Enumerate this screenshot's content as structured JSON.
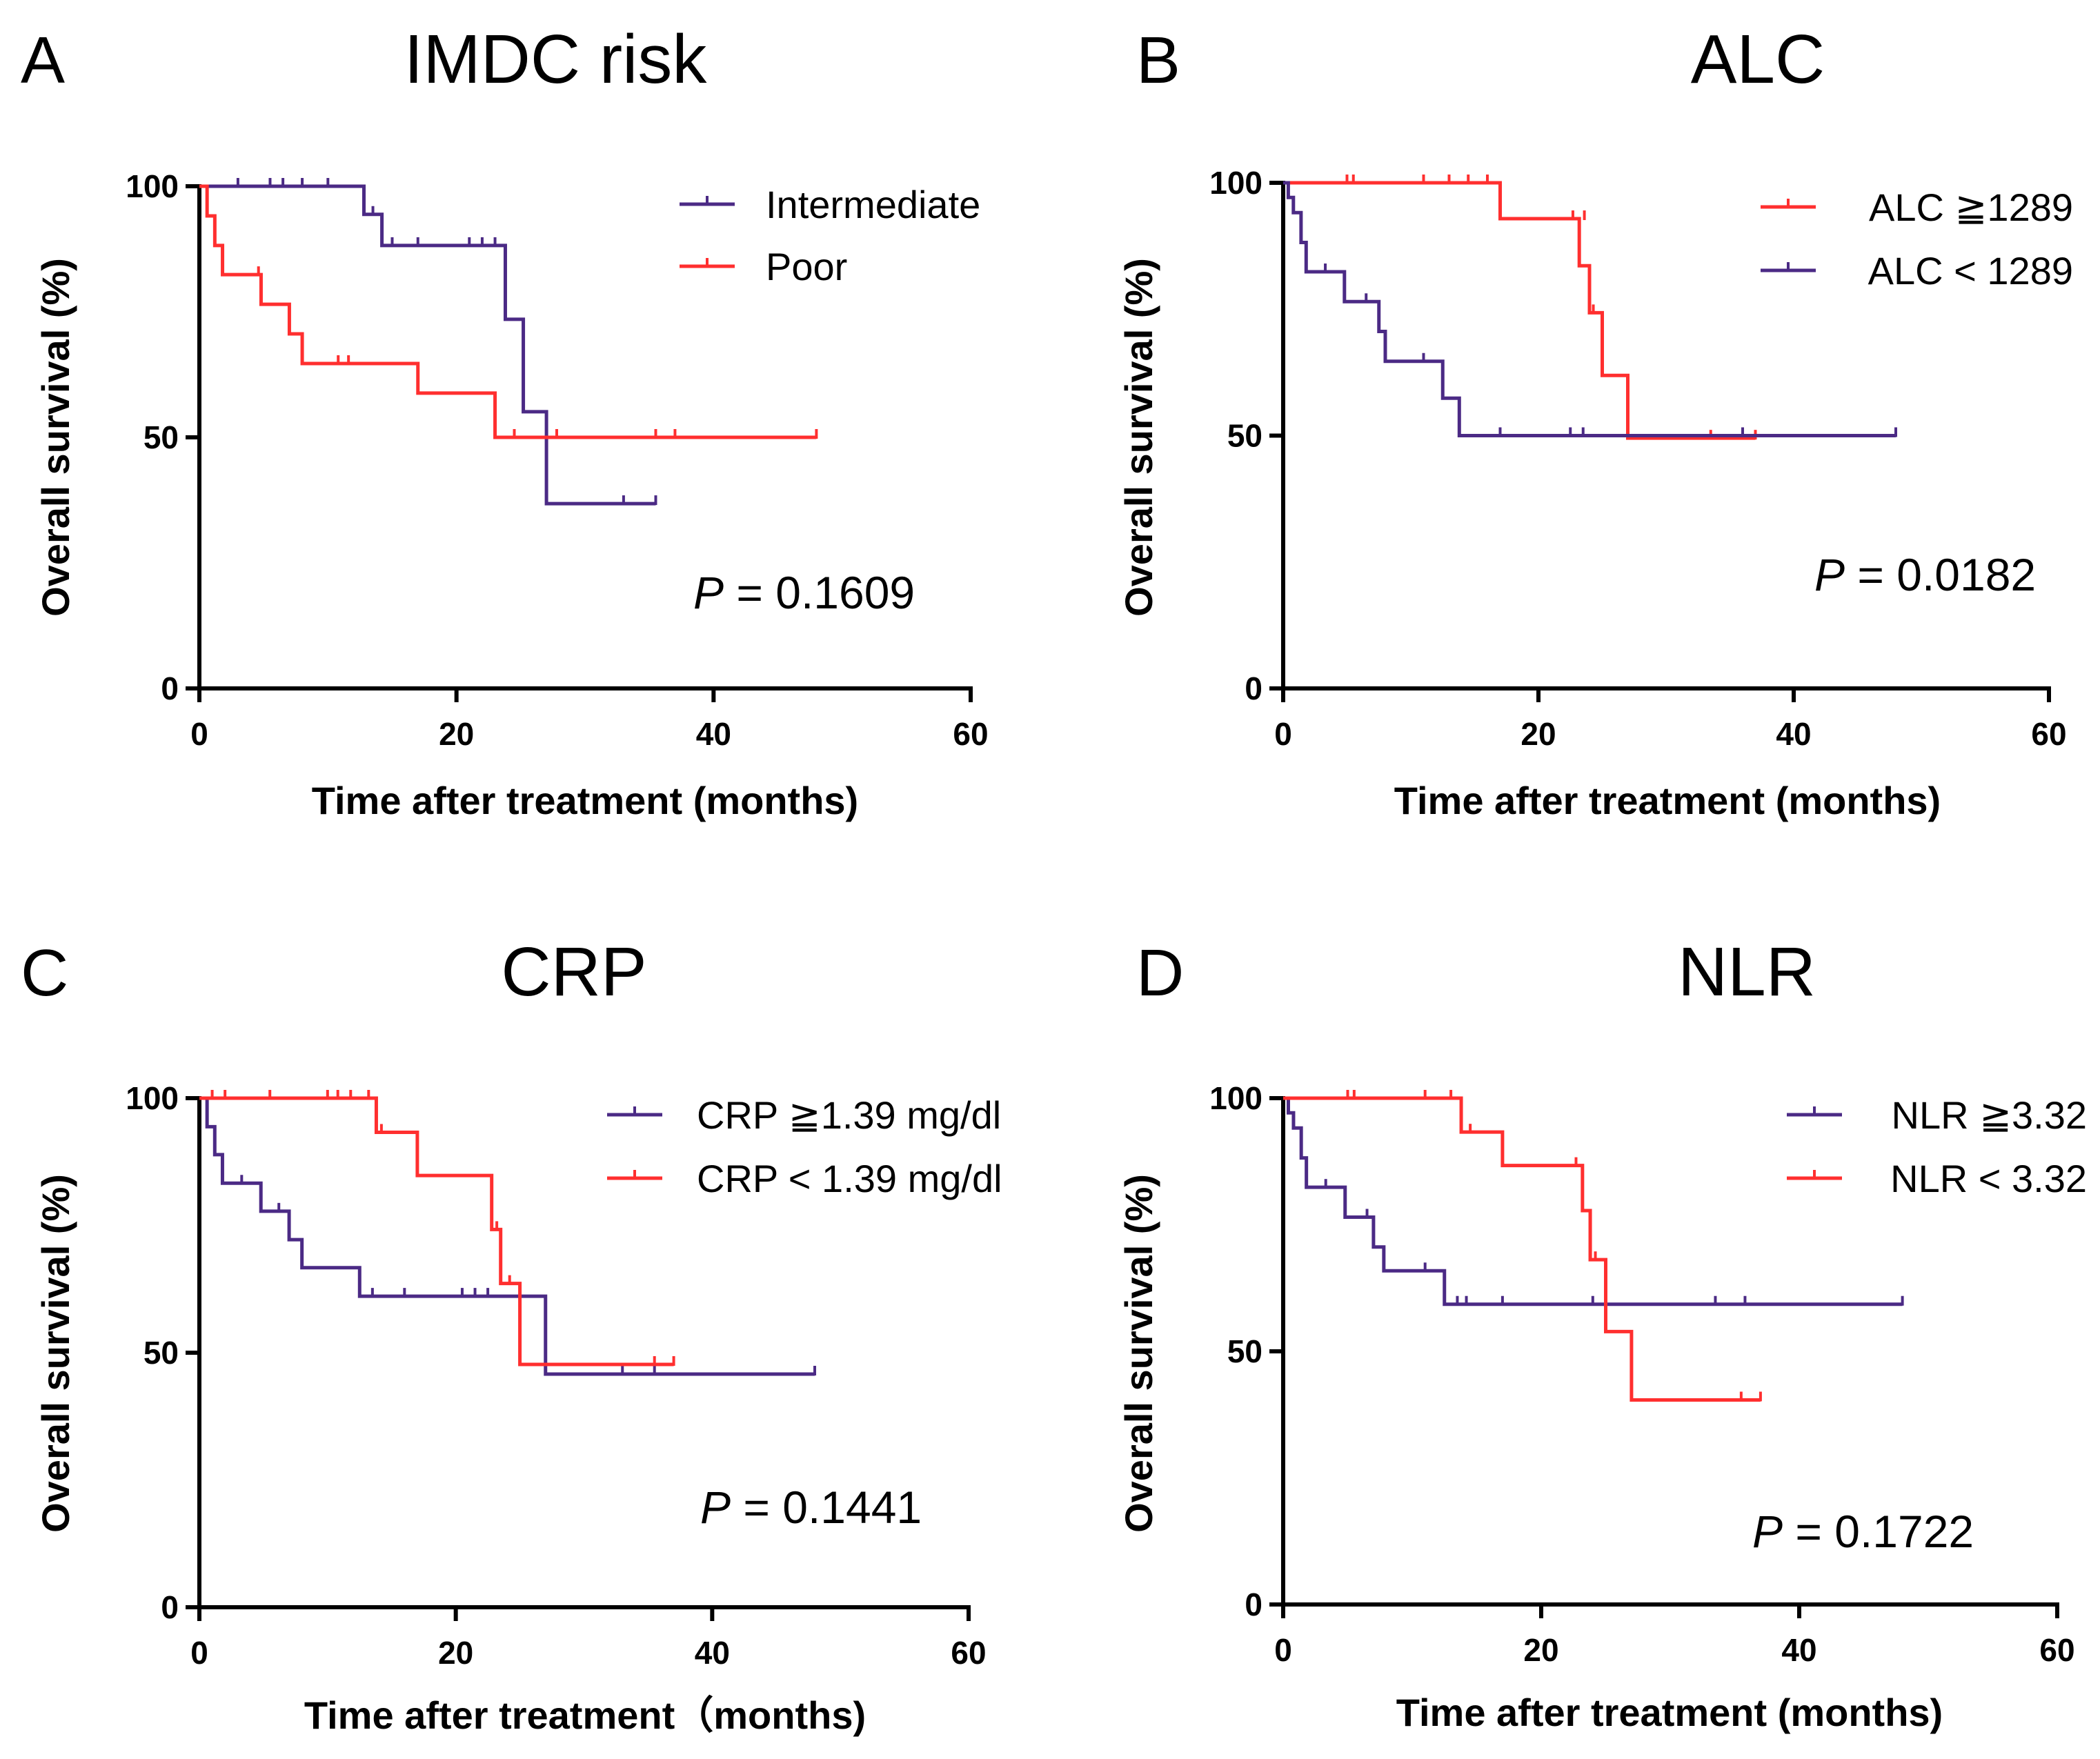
{
  "colors": {
    "purple": "#4b2a85",
    "red": "#ff2f2f",
    "axis": "#000000"
  },
  "chart_data": [
    {
      "type": "line",
      "subtype": "kaplan-meier",
      "panel_letter": "A",
      "title": "IMDC risk",
      "xlabel": "Time after treatment (months)",
      "ylabel": "Overall survival (%)",
      "xlim": [
        0,
        60
      ],
      "ylim": [
        0,
        100
      ],
      "xticks": [
        "0",
        "20",
        "40",
        "60"
      ],
      "yticks": [
        "0",
        "50",
        "100"
      ],
      "legend_position": "top-right",
      "p_prefix": "P",
      "p_suffix": " = 0.1609",
      "series": [
        {
          "name": "Intermediate",
          "color": "purple",
          "steps": [
            [
              0,
              100
            ],
            [
              12.8,
              94.4
            ],
            [
              14.2,
              88.2
            ],
            [
              23.8,
              73.5
            ],
            [
              25.2,
              55.1
            ],
            [
              27,
              36.8
            ],
            [
              35.5,
              36.8
            ]
          ],
          "censors": [
            [
              3,
              100
            ],
            [
              5.5,
              100
            ],
            [
              6.5,
              100
            ],
            [
              8,
              100
            ],
            [
              10,
              100
            ],
            [
              13.5,
              94.4
            ],
            [
              15,
              88.2
            ],
            [
              17,
              88.2
            ],
            [
              21,
              88.2
            ],
            [
              22,
              88.2
            ],
            [
              23,
              88.2
            ],
            [
              33,
              36.8
            ],
            [
              35.5,
              36.8
            ]
          ]
        },
        {
          "name": "Poor",
          "color": "red",
          "steps": [
            [
              0,
              100
            ],
            [
              0.6,
              94.1
            ],
            [
              1.2,
              88.2
            ],
            [
              1.8,
              82.4
            ],
            [
              4.8,
              76.5
            ],
            [
              7,
              70.6
            ],
            [
              8,
              64.7
            ],
            [
              17,
              58.8
            ],
            [
              23,
              50
            ],
            [
              48,
              50
            ]
          ],
          "censors": [
            [
              4.6,
              82.4
            ],
            [
              10.8,
              64.7
            ],
            [
              11.6,
              64.7
            ],
            [
              24.5,
              50
            ],
            [
              27.8,
              50
            ],
            [
              35.5,
              50
            ],
            [
              37,
              50
            ],
            [
              48,
              50
            ]
          ]
        }
      ]
    },
    {
      "type": "line",
      "subtype": "kaplan-meier",
      "panel_letter": "B",
      "title": "ALC",
      "xlabel": "Time after treatment (months)",
      "ylabel": "Overall survival (%)",
      "xlim": [
        0,
        60
      ],
      "ylim": [
        0,
        100
      ],
      "xticks": [
        "0",
        "20",
        "40",
        "60"
      ],
      "yticks": [
        "0",
        "50",
        "100"
      ],
      "legend_position": "top-right",
      "p_prefix": "P",
      "p_suffix": " = 0.0182",
      "series": [
        {
          "name": "ALC ≧1289",
          "color": "red",
          "steps": [
            [
              0,
              100
            ],
            [
              17,
              92.9
            ],
            [
              23.2,
              83.6
            ],
            [
              24,
              74.3
            ],
            [
              25,
              61.9
            ],
            [
              27,
              49.5
            ],
            [
              37,
              49.5
            ]
          ],
          "censors": [
            [
              5,
              100
            ],
            [
              5.5,
              100
            ],
            [
              11,
              100
            ],
            [
              13,
              100
            ],
            [
              14.5,
              100
            ],
            [
              16,
              100
            ],
            [
              22.7,
              92.9
            ],
            [
              23.6,
              92.9
            ],
            [
              24.3,
              74.3
            ],
            [
              33.5,
              49.5
            ],
            [
              37,
              49.5
            ]
          ]
        },
        {
          "name": "ALC < 1289",
          "color": "purple",
          "steps": [
            [
              0,
              100
            ],
            [
              0.4,
              97.1
            ],
            [
              0.8,
              94.1
            ],
            [
              1.4,
              88.2
            ],
            [
              1.8,
              82.4
            ],
            [
              4.8,
              76.5
            ],
            [
              7.5,
              70.6
            ],
            [
              8,
              64.7
            ],
            [
              12.5,
              57.4
            ],
            [
              13.8,
              50
            ],
            [
              48,
              50
            ]
          ],
          "censors": [
            [
              3.3,
              82.4
            ],
            [
              6.5,
              76.5
            ],
            [
              11,
              64.7
            ],
            [
              17,
              50
            ],
            [
              22.5,
              50
            ],
            [
              23.5,
              50
            ],
            [
              36,
              50
            ],
            [
              48,
              50
            ]
          ]
        }
      ]
    },
    {
      "type": "line",
      "subtype": "kaplan-meier",
      "panel_letter": "C",
      "title": "CRP",
      "xlabel": "Time after treatment（months)",
      "ylabel": "Overall survival (%)",
      "xlim": [
        0,
        60
      ],
      "ylim": [
        0,
        100
      ],
      "xticks": [
        "0",
        "20",
        "40",
        "60"
      ],
      "yticks": [
        "0",
        "50",
        "100"
      ],
      "legend_position": "top-right",
      "p_prefix": "P",
      "p_suffix": " = 0.1441",
      "series": [
        {
          "name": "CRP ≧1.39 mg/dl",
          "color": "purple",
          "steps": [
            [
              0,
              100
            ],
            [
              0.6,
              94.4
            ],
            [
              1.2,
              88.9
            ],
            [
              1.8,
              83.3
            ],
            [
              4.8,
              77.8
            ],
            [
              7,
              72.2
            ],
            [
              8,
              66.7
            ],
            [
              12.5,
              61.1
            ],
            [
              27,
              45.8
            ],
            [
              48,
              45.8
            ]
          ],
          "censors": [
            [
              3.3,
              83.3
            ],
            [
              6.2,
              77.8
            ],
            [
              13.5,
              61.1
            ],
            [
              16,
              61.1
            ],
            [
              20.5,
              61.1
            ],
            [
              21.5,
              61.1
            ],
            [
              22.5,
              61.1
            ],
            [
              33,
              45.8
            ],
            [
              35.5,
              45.8
            ],
            [
              48,
              45.8
            ]
          ]
        },
        {
          "name": "CRP < 1.39 mg/dl",
          "color": "red",
          "steps": [
            [
              0,
              100
            ],
            [
              13.8,
              93.3
            ],
            [
              17,
              84.8
            ],
            [
              22.8,
              74.2
            ],
            [
              23.5,
              63.6
            ],
            [
              25,
              47.7
            ],
            [
              37,
              47.7
            ]
          ],
          "censors": [
            [
              1,
              100
            ],
            [
              2,
              100
            ],
            [
              5.5,
              100
            ],
            [
              10,
              100
            ],
            [
              10.8,
              100
            ],
            [
              11.8,
              100
            ],
            [
              13.2,
              100
            ],
            [
              14.2,
              93.3
            ],
            [
              23.2,
              74.2
            ],
            [
              24.2,
              63.6
            ],
            [
              35.5,
              47.7
            ],
            [
              37,
              47.7
            ]
          ]
        }
      ]
    },
    {
      "type": "line",
      "subtype": "kaplan-meier",
      "panel_letter": "D",
      "title": "NLR",
      "xlabel": "Time after treatment (months)",
      "ylabel": "Overall survival (%)",
      "xlim": [
        0,
        60
      ],
      "ylim": [
        0,
        100
      ],
      "xticks": [
        "0",
        "20",
        "40",
        "60"
      ],
      "yticks": [
        "0",
        "50",
        "100"
      ],
      "legend_position": "top-right",
      "p_prefix": "P",
      "p_suffix": " = 0.1722",
      "series": [
        {
          "name": "NLR ≧3.32",
          "color": "purple",
          "steps": [
            [
              0,
              100
            ],
            [
              0.4,
              97.1
            ],
            [
              0.8,
              94.1
            ],
            [
              1.4,
              88.2
            ],
            [
              1.8,
              82.4
            ],
            [
              4.8,
              76.5
            ],
            [
              7,
              70.6
            ],
            [
              7.8,
              65.9
            ],
            [
              12.5,
              59.3
            ],
            [
              48,
              59.3
            ]
          ],
          "censors": [
            [
              3.3,
              82.4
            ],
            [
              6.5,
              76.5
            ],
            [
              11,
              65.9
            ],
            [
              13.5,
              59.3
            ],
            [
              14.2,
              59.3
            ],
            [
              17,
              59.3
            ],
            [
              24,
              59.3
            ],
            [
              33.5,
              59.3
            ],
            [
              35.8,
              59.3
            ],
            [
              48,
              59.3
            ]
          ]
        },
        {
          "name": "NLR < 3.32",
          "color": "red",
          "steps": [
            [
              0,
              100
            ],
            [
              13.8,
              93.3
            ],
            [
              17,
              86.7
            ],
            [
              23.2,
              77.8
            ],
            [
              23.8,
              68.1
            ],
            [
              25,
              53.9
            ],
            [
              27,
              40.4
            ],
            [
              37,
              40.4
            ]
          ],
          "censors": [
            [
              5,
              100
            ],
            [
              5.5,
              100
            ],
            [
              11,
              100
            ],
            [
              13,
              100
            ],
            [
              14.5,
              93.3
            ],
            [
              22.7,
              86.7
            ],
            [
              24.2,
              68.1
            ],
            [
              35.5,
              40.4
            ],
            [
              37,
              40.4
            ]
          ]
        }
      ]
    }
  ]
}
